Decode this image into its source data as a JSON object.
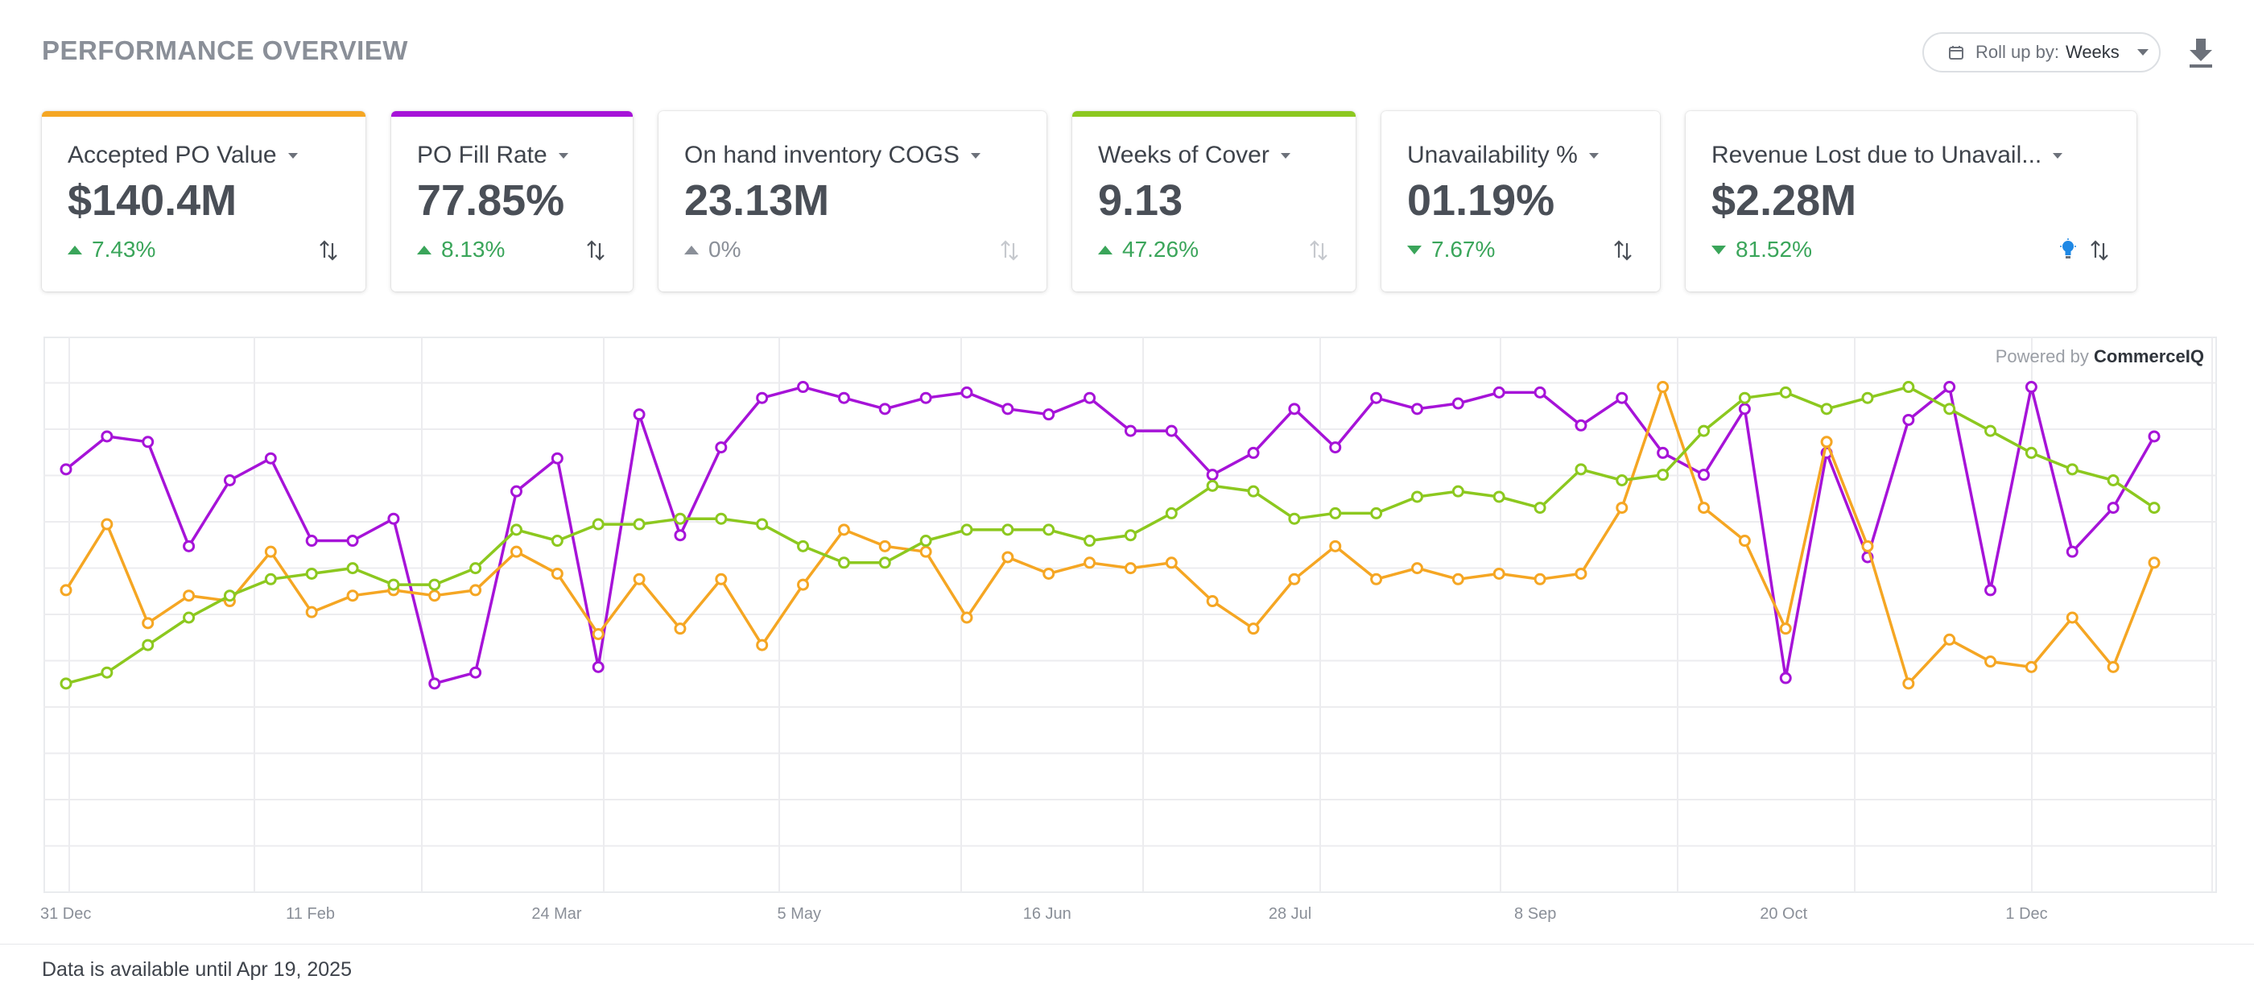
{
  "header": {
    "title": "PERFORMANCE OVERVIEW",
    "rollup_label": "Roll up by:",
    "rollup_value": "Weeks"
  },
  "cards": [
    {
      "label": "Accepted PO Value",
      "value": "$140.4M",
      "delta": "7.43%",
      "direction": "up",
      "delta_color": "#3aa55a",
      "accent": "#f5a623"
    },
    {
      "label": "PO Fill Rate",
      "value": "77.85%",
      "delta": "8.13%",
      "direction": "up",
      "delta_color": "#3aa55a",
      "accent": "#a613d8"
    },
    {
      "label": "On hand inventory COGS",
      "value": "23.13M",
      "delta": "0%",
      "direction": "up",
      "delta_color": "#8a8f98",
      "accent": ""
    },
    {
      "label": "Weeks of Cover",
      "value": "9.13",
      "delta": "47.26%",
      "direction": "up",
      "delta_color": "#3aa55a",
      "accent": "#8cc81f"
    },
    {
      "label": "Unavailability %",
      "value": "01.19%",
      "delta": "7.67%",
      "direction": "down",
      "delta_color": "#3aa55a",
      "accent": ""
    },
    {
      "label": "Revenue Lost due to Unavail...",
      "value": "$2.28M",
      "delta": "81.52%",
      "direction": "down",
      "delta_color": "#3aa55a",
      "accent": ""
    }
  ],
  "chart_data": {
    "type": "line",
    "xtick_labels": [
      "31 Dec",
      "11 Feb",
      "24 Mar",
      "5 May",
      "16 Jun",
      "28 Jul",
      "8 Sep",
      "20 Oct",
      "1 Dec"
    ],
    "ylim": [
      0,
      1
    ],
    "grid": true,
    "series": [
      {
        "color": "#a613d8",
        "values": [
          0.77,
          0.83,
          0.82,
          0.63,
          0.75,
          0.79,
          0.64,
          0.64,
          0.68,
          0.38,
          0.4,
          0.73,
          0.79,
          0.41,
          0.87,
          0.65,
          0.81,
          0.9,
          0.92,
          0.9,
          0.88,
          0.9,
          0.91,
          0.88,
          0.87,
          0.9,
          0.84,
          0.84,
          0.76,
          0.8,
          0.88,
          0.81,
          0.9,
          0.88,
          0.89,
          0.91,
          0.91,
          0.85,
          0.9,
          0.8,
          0.76,
          0.88,
          0.39,
          0.8,
          0.61,
          0.86,
          0.92,
          0.55,
          0.92,
          0.62,
          0.7,
          0.83
        ]
      },
      {
        "color": "#f5a623",
        "values": [
          0.55,
          0.67,
          0.49,
          0.54,
          0.53,
          0.62,
          0.51,
          0.54,
          0.55,
          0.54,
          0.55,
          0.62,
          0.58,
          0.47,
          0.57,
          0.48,
          0.57,
          0.45,
          0.56,
          0.66,
          0.63,
          0.62,
          0.5,
          0.61,
          0.58,
          0.6,
          0.59,
          0.6,
          0.53,
          0.48,
          0.57,
          0.63,
          0.57,
          0.59,
          0.57,
          0.58,
          0.57,
          0.58,
          0.7,
          0.92,
          0.7,
          0.64,
          0.48,
          0.82,
          0.63,
          0.38,
          0.46,
          0.42,
          0.41,
          0.5,
          0.41,
          0.6
        ]
      },
      {
        "color": "#8cc81f",
        "values": [
          0.38,
          0.4,
          0.45,
          0.5,
          0.54,
          0.57,
          0.58,
          0.59,
          0.56,
          0.56,
          0.59,
          0.66,
          0.64,
          0.67,
          0.67,
          0.68,
          0.68,
          0.67,
          0.63,
          0.6,
          0.6,
          0.64,
          0.66,
          0.66,
          0.66,
          0.64,
          0.65,
          0.69,
          0.74,
          0.73,
          0.68,
          0.69,
          0.69,
          0.72,
          0.73,
          0.72,
          0.7,
          0.77,
          0.75,
          0.76,
          0.84,
          0.9,
          0.91,
          0.88,
          0.9,
          0.92,
          0.88,
          0.84,
          0.8,
          0.77,
          0.75,
          0.7
        ]
      }
    ]
  },
  "branding": {
    "powered_prefix": "Powered by",
    "powered_brand": "CommerceIQ"
  },
  "footer": {
    "note": "Data is available until Apr 19, 2025"
  }
}
